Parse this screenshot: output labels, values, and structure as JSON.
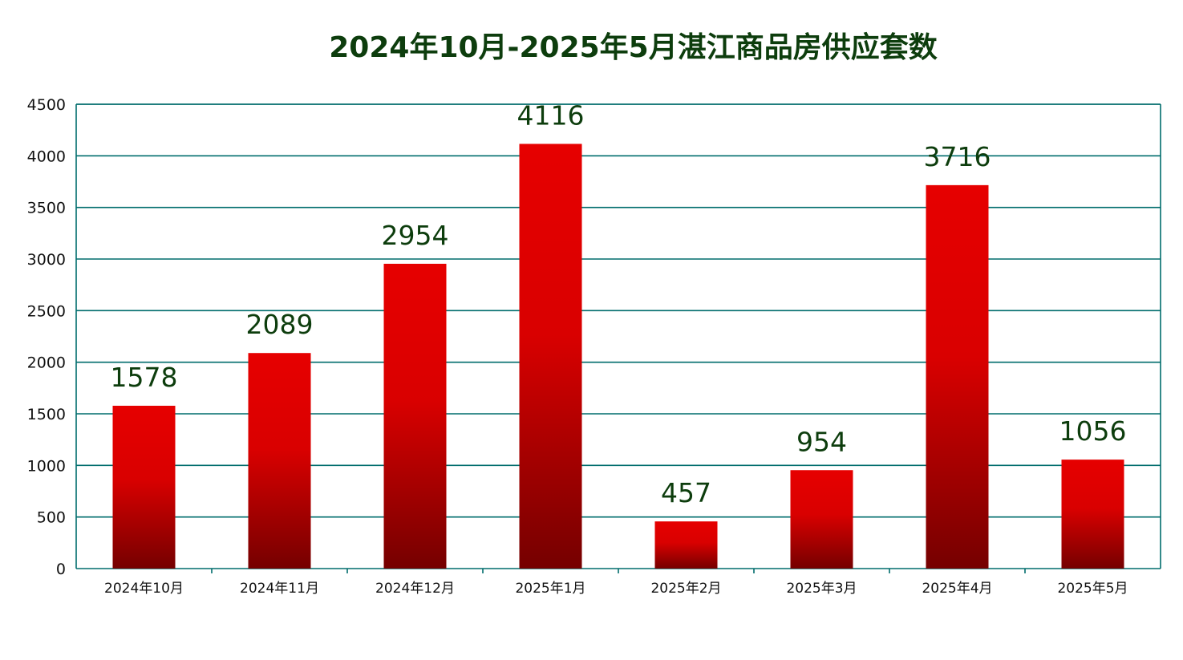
{
  "chart_data": {
    "type": "bar",
    "title": "2024年10月-2025年5月湛江商品房供应套数",
    "xlabel": "",
    "ylabel": "",
    "categories": [
      "2024年10月",
      "2024年11月",
      "2024年12月",
      "2025年1月",
      "2025年2月",
      "2025年3月",
      "2025年4月",
      "2025年5月"
    ],
    "series": [
      {
        "values": [
          1578,
          2089,
          2954,
          4116,
          457,
          954,
          3716,
          1056
        ]
      }
    ],
    "ylim": [
      0,
      4500
    ],
    "yticks": [
      0,
      500,
      1000,
      1500,
      2000,
      2500,
      3000,
      3500,
      4000,
      4500
    ],
    "grid": true,
    "legend": "none",
    "data_labels": true
  },
  "colors": {
    "bar_top": "#e60000",
    "bar_bottom": "#750000",
    "grid": "#006d6d",
    "title": "#0d3d0d",
    "data_label": "#0d3d0d"
  }
}
